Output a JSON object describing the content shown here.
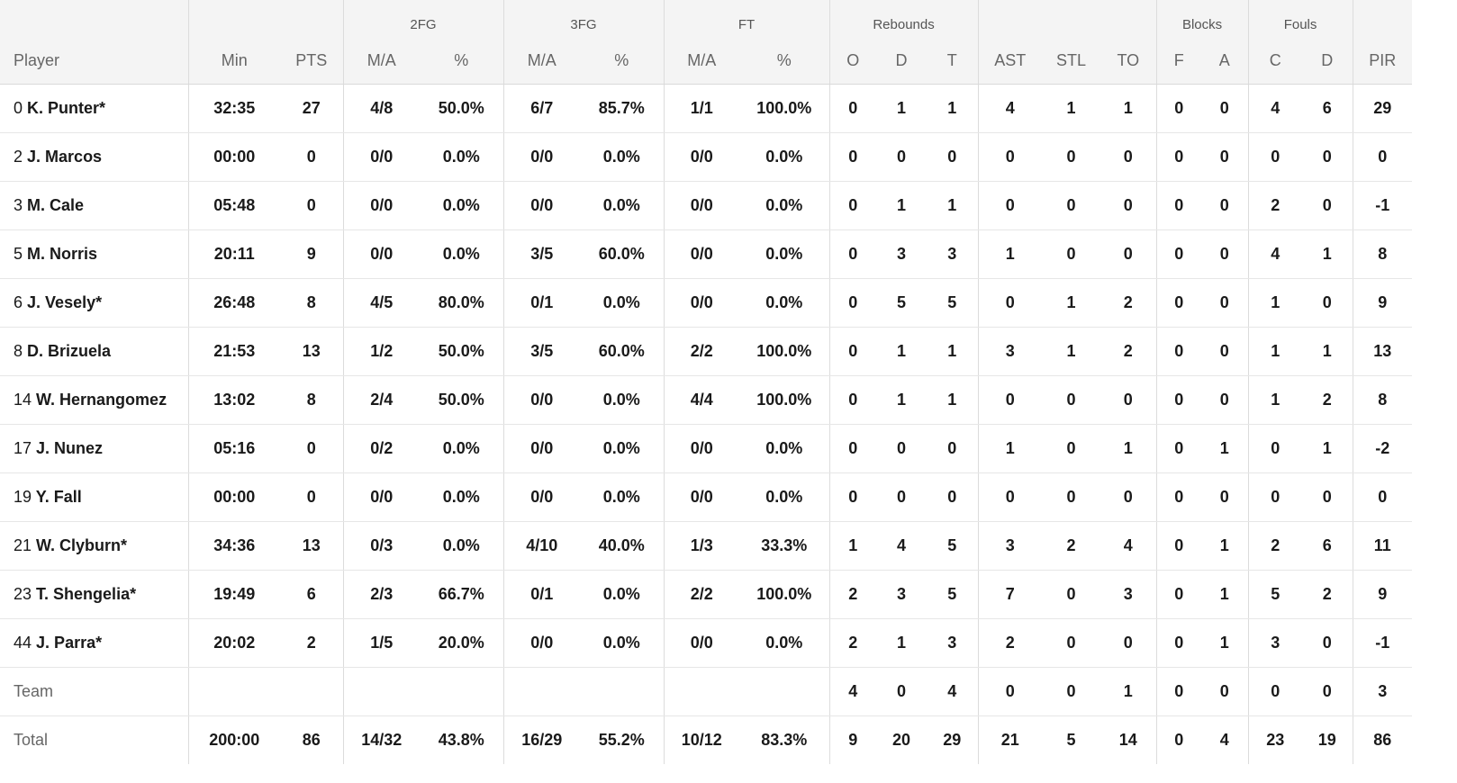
{
  "header": {
    "groups": {
      "fg2": "2FG",
      "fg3": "3FG",
      "ft": "FT",
      "rebounds": "Rebounds",
      "blocks": "Blocks",
      "fouls": "Fouls"
    },
    "columns": [
      "Player",
      "Min",
      "PTS",
      "M/A",
      "%",
      "M/A",
      "%",
      "M/A",
      "%",
      "O",
      "D",
      "T",
      "AST",
      "STL",
      "TO",
      "F",
      "A",
      "C",
      "D",
      "PIR"
    ]
  },
  "players": [
    {
      "num": "0",
      "name": "K. Punter*",
      "stats": [
        "32:35",
        "27",
        "4/8",
        "50.0%",
        "6/7",
        "85.7%",
        "1/1",
        "100.0%",
        "0",
        "1",
        "1",
        "4",
        "1",
        "1",
        "0",
        "0",
        "4",
        "6",
        "29"
      ]
    },
    {
      "num": "2",
      "name": "J. Marcos",
      "stats": [
        "00:00",
        "0",
        "0/0",
        "0.0%",
        "0/0",
        "0.0%",
        "0/0",
        "0.0%",
        "0",
        "0",
        "0",
        "0",
        "0",
        "0",
        "0",
        "0",
        "0",
        "0",
        "0"
      ]
    },
    {
      "num": "3",
      "name": "M. Cale",
      "stats": [
        "05:48",
        "0",
        "0/0",
        "0.0%",
        "0/0",
        "0.0%",
        "0/0",
        "0.0%",
        "0",
        "1",
        "1",
        "0",
        "0",
        "0",
        "0",
        "0",
        "2",
        "0",
        "-1"
      ]
    },
    {
      "num": "5",
      "name": "M. Norris",
      "stats": [
        "20:11",
        "9",
        "0/0",
        "0.0%",
        "3/5",
        "60.0%",
        "0/0",
        "0.0%",
        "0",
        "3",
        "3",
        "1",
        "0",
        "0",
        "0",
        "0",
        "4",
        "1",
        "8"
      ]
    },
    {
      "num": "6",
      "name": "J. Vesely*",
      "stats": [
        "26:48",
        "8",
        "4/5",
        "80.0%",
        "0/1",
        "0.0%",
        "0/0",
        "0.0%",
        "0",
        "5",
        "5",
        "0",
        "1",
        "2",
        "0",
        "0",
        "1",
        "0",
        "9"
      ]
    },
    {
      "num": "8",
      "name": "D. Brizuela",
      "stats": [
        "21:53",
        "13",
        "1/2",
        "50.0%",
        "3/5",
        "60.0%",
        "2/2",
        "100.0%",
        "0",
        "1",
        "1",
        "3",
        "1",
        "2",
        "0",
        "0",
        "1",
        "1",
        "13"
      ]
    },
    {
      "num": "14",
      "name": "W. Hernangomez",
      "stats": [
        "13:02",
        "8",
        "2/4",
        "50.0%",
        "0/0",
        "0.0%",
        "4/4",
        "100.0%",
        "0",
        "1",
        "1",
        "0",
        "0",
        "0",
        "0",
        "0",
        "1",
        "2",
        "8"
      ]
    },
    {
      "num": "17",
      "name": "J. Nunez",
      "stats": [
        "05:16",
        "0",
        "0/2",
        "0.0%",
        "0/0",
        "0.0%",
        "0/0",
        "0.0%",
        "0",
        "0",
        "0",
        "1",
        "0",
        "1",
        "0",
        "1",
        "0",
        "1",
        "-2"
      ]
    },
    {
      "num": "19",
      "name": "Y. Fall",
      "stats": [
        "00:00",
        "0",
        "0/0",
        "0.0%",
        "0/0",
        "0.0%",
        "0/0",
        "0.0%",
        "0",
        "0",
        "0",
        "0",
        "0",
        "0",
        "0",
        "0",
        "0",
        "0",
        "0"
      ]
    },
    {
      "num": "21",
      "name": "W. Clyburn*",
      "stats": [
        "34:36",
        "13",
        "0/3",
        "0.0%",
        "4/10",
        "40.0%",
        "1/3",
        "33.3%",
        "1",
        "4",
        "5",
        "3",
        "2",
        "4",
        "0",
        "1",
        "2",
        "6",
        "11"
      ]
    },
    {
      "num": "23",
      "name": "T. Shengelia*",
      "stats": [
        "19:49",
        "6",
        "2/3",
        "66.7%",
        "0/1",
        "0.0%",
        "2/2",
        "100.0%",
        "2",
        "3",
        "5",
        "7",
        "0",
        "3",
        "0",
        "1",
        "5",
        "2",
        "9"
      ]
    },
    {
      "num": "44",
      "name": "J. Parra*",
      "stats": [
        "20:02",
        "2",
        "1/5",
        "20.0%",
        "0/0",
        "0.0%",
        "0/0",
        "0.0%",
        "2",
        "1",
        "3",
        "2",
        "0",
        "0",
        "0",
        "1",
        "3",
        "0",
        "-1"
      ]
    }
  ],
  "team": {
    "label": "Team",
    "stats": [
      "",
      "",
      "",
      "",
      "",
      "",
      "",
      "",
      "4",
      "0",
      "4",
      "0",
      "0",
      "1",
      "0",
      "0",
      "0",
      "0",
      "3"
    ]
  },
  "total": {
    "label": "Total",
    "stats": [
      "200:00",
      "86",
      "14/32",
      "43.8%",
      "16/29",
      "55.2%",
      "10/12",
      "83.3%",
      "9",
      "20",
      "29",
      "21",
      "5",
      "14",
      "0",
      "4",
      "23",
      "19",
      "86"
    ]
  }
}
